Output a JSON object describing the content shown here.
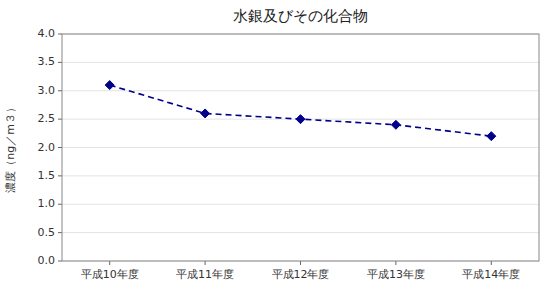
{
  "chart_data": {
    "type": "line",
    "title": "水銀及びその化合物",
    "categories": [
      "平成10年度",
      "平成11年度",
      "平成12年度",
      "平成13年度",
      "平成14年度"
    ],
    "values": [
      3.1,
      2.6,
      2.5,
      2.4,
      2.2
    ],
    "ylabel": "濃度（ng／m３）",
    "ylim": [
      0.0,
      4.0
    ],
    "yticks": [
      {
        "value": 0.0,
        "label": "0.0"
      },
      0.5,
      {
        "value": 1.0,
        "label": "1.0"
      },
      1.5,
      {
        "value": 2.0,
        "label": "2.0"
      },
      2.5,
      {
        "value": 3.0,
        "label": "3.0"
      },
      3.5,
      {
        "value": 4.0,
        "label": "4.0"
      }
    ],
    "color": "#00008B",
    "marker": "diamond",
    "line_style": "dashed",
    "grid": true
  }
}
